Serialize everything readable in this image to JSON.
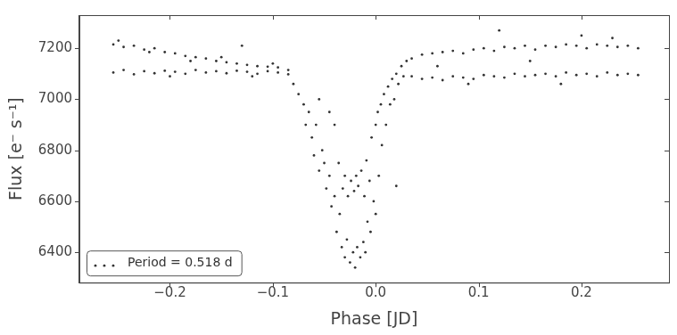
{
  "chart_data": {
    "type": "scatter",
    "x_label": "Phase [JD]",
    "y_label": "Flux [e⁻ s⁻¹]",
    "xlim": [
      -0.288,
      0.285
    ],
    "ylim": [
      6281,
      7330
    ],
    "xticks": [
      {
        "value": -0.2,
        "label": "−0.2"
      },
      {
        "value": -0.1,
        "label": "−0.1"
      },
      {
        "value": 0,
        "label": "0.0"
      },
      {
        "value": 0.1,
        "label": "0.1"
      },
      {
        "value": 0.2,
        "label": "0.2"
      }
    ],
    "yticks": [
      6400,
      6600,
      6800,
      7000,
      7200
    ],
    "grid": false,
    "legend": "lower left",
    "x": [
      -0.255,
      -0.245,
      -0.235,
      -0.225,
      -0.215,
      -0.205,
      -0.195,
      -0.185,
      -0.175,
      -0.165,
      -0.155,
      -0.145,
      -0.135,
      -0.125,
      -0.115,
      -0.105,
      -0.095,
      -0.085,
      -0.255,
      -0.245,
      -0.235,
      -0.225,
      -0.215,
      -0.205,
      -0.195,
      -0.185,
      -0.175,
      -0.165,
      -0.155,
      -0.145,
      -0.135,
      -0.125,
      -0.115,
      -0.105,
      -0.095,
      -0.085,
      -0.25,
      -0.22,
      -0.2,
      -0.15,
      -0.12,
      -0.18,
      -0.1,
      -0.13,
      -0.08,
      -0.075,
      -0.07,
      -0.068,
      -0.065,
      -0.062,
      -0.06,
      -0.058,
      -0.055,
      -0.052,
      -0.05,
      -0.048,
      -0.045,
      -0.043,
      -0.04,
      -0.04,
      -0.038,
      -0.036,
      -0.035,
      -0.033,
      -0.032,
      -0.03,
      -0.03,
      -0.028,
      -0.027,
      -0.025,
      -0.024,
      -0.022,
      -0.021,
      -0.02,
      -0.019,
      -0.018,
      -0.017,
      -0.015,
      -0.014,
      -0.012,
      -0.011,
      -0.01,
      -0.009,
      -0.008,
      -0.006,
      -0.005,
      -0.004,
      -0.002,
      0.0,
      0.0,
      0.002,
      0.003,
      0.005,
      0.006,
      0.008,
      0.01,
      0.012,
      0.014,
      0.016,
      0.018,
      0.02,
      0.022,
      0.025,
      0.027,
      0.03,
      0.02,
      -0.055,
      -0.045,
      0.035,
      0.045,
      0.055,
      0.065,
      0.075,
      0.085,
      0.095,
      0.105,
      0.115,
      0.125,
      0.135,
      0.145,
      0.155,
      0.165,
      0.175,
      0.185,
      0.195,
      0.205,
      0.215,
      0.225,
      0.235,
      0.245,
      0.255,
      0.035,
      0.045,
      0.055,
      0.065,
      0.075,
      0.085,
      0.095,
      0.105,
      0.115,
      0.125,
      0.135,
      0.145,
      0.155,
      0.165,
      0.175,
      0.185,
      0.195,
      0.205,
      0.215,
      0.225,
      0.235,
      0.245,
      0.255,
      0.12,
      0.2,
      0.06,
      0.15,
      0.09,
      0.23,
      0.18
    ],
    "series": [
      {
        "name": "Period = 0.518 d",
        "color": "#333333",
        "marker": "circle",
        "values": [
          7215,
          7205,
          7210,
          7195,
          7200,
          7185,
          7180,
          7170,
          7165,
          7160,
          7150,
          7145,
          7140,
          7135,
          7130,
          7128,
          7125,
          7115,
          7105,
          7115,
          7098,
          7110,
          7102,
          7112,
          7108,
          7100,
          7115,
          7105,
          7110,
          7102,
          7112,
          7108,
          7100,
          7110,
          7105,
          7098,
          7230,
          7185,
          7090,
          7165,
          7090,
          7150,
          7140,
          7210,
          7060,
          7020,
          6980,
          6900,
          6950,
          6850,
          6780,
          6900,
          6720,
          6800,
          6750,
          6650,
          6700,
          6580,
          6620,
          6900,
          6480,
          6750,
          6550,
          6420,
          6650,
          6380,
          6700,
          6450,
          6620,
          6360,
          6680,
          6400,
          6640,
          6340,
          6700,
          6420,
          6660,
          6380,
          6720,
          6440,
          6620,
          6400,
          6760,
          6520,
          6680,
          6480,
          6850,
          6600,
          6900,
          6550,
          6950,
          6700,
          6980,
          6820,
          7020,
          6900,
          7050,
          6980,
          7080,
          7000,
          7100,
          7060,
          7130,
          7090,
          7150,
          6660,
          7000,
          6950,
          7160,
          7175,
          7180,
          7185,
          7190,
          7180,
          7195,
          7200,
          7190,
          7205,
          7200,
          7210,
          7195,
          7210,
          7205,
          7215,
          7210,
          7200,
          7215,
          7210,
          7205,
          7210,
          7200,
          7090,
          7080,
          7085,
          7075,
          7090,
          7085,
          7080,
          7095,
          7090,
          7085,
          7100,
          7090,
          7095,
          7100,
          7090,
          7105,
          7095,
          7100,
          7090,
          7105,
          7095,
          7100,
          7095,
          7270,
          7250,
          7130,
          7150,
          7060,
          7240,
          7060
        ]
      }
    ]
  }
}
